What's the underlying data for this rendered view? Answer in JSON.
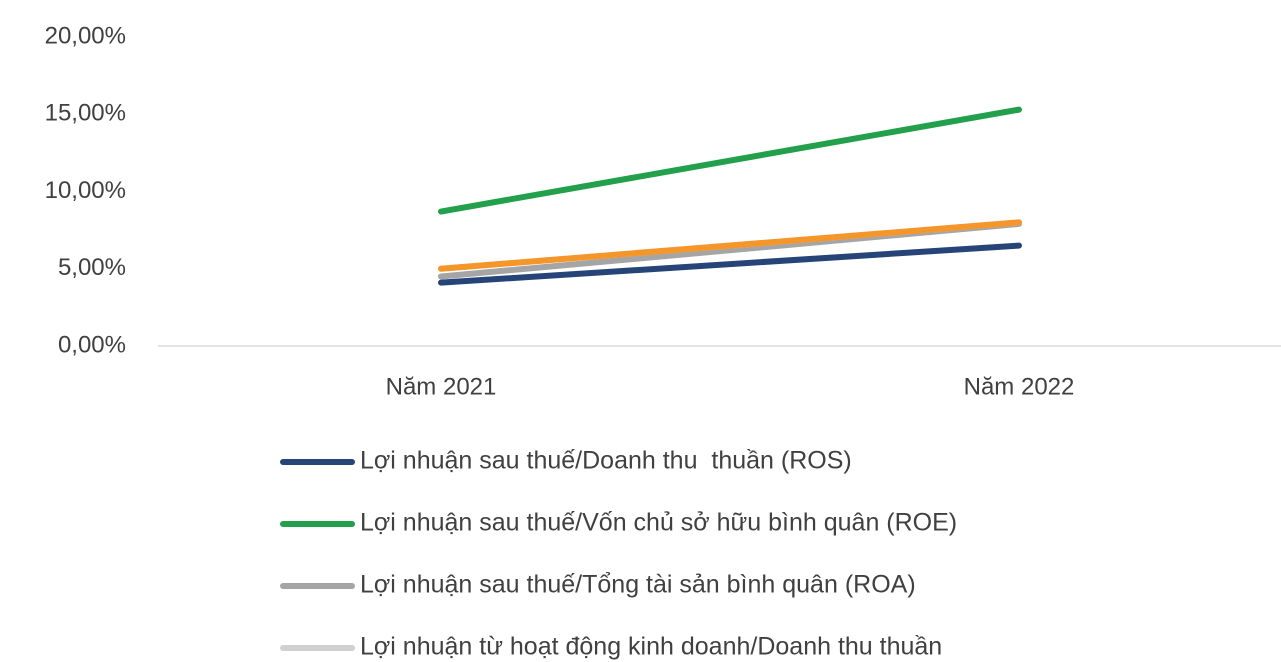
{
  "chart_data": {
    "type": "line",
    "categories": [
      "Năm 2021",
      "Năm 2022"
    ],
    "series": [
      {
        "name": "Lợi nhuận sau thuế/Doanh thu  thuần (ROS)",
        "color": "#264478",
        "values": [
          4.1,
          6.5
        ]
      },
      {
        "name": "Lợi nhuận sau thuế/Vốn chủ sở hữu bình quân (ROE)",
        "color": "#22a04b",
        "values": [
          8.7,
          15.3
        ]
      },
      {
        "name": "Lợi nhuận sau thuế/Tổng tài sản bình quân (ROA)",
        "color": "#a5a5a5",
        "values": [
          4.5,
          7.9
        ]
      },
      {
        "name": "Lợi nhuận từ hoạt động kinh doanh/Doanh thu thuần",
        "color": "#d0d0d0",
        "values": [
          5.0,
          8.0
        ]
      },
      {
        "color": "#f5962a",
        "values": [
          5.0,
          8.0
        ]
      }
    ],
    "ylim": [
      0,
      20
    ],
    "yticks": [
      {
        "value": 0,
        "label": "0,00%"
      },
      {
        "value": 5,
        "label": "5,00%"
      },
      {
        "value": 10,
        "label": "10,00%"
      },
      {
        "value": 15,
        "label": "15,00%"
      },
      {
        "value": 20,
        "label": "20,00%"
      }
    ],
    "legend": "bottom"
  }
}
